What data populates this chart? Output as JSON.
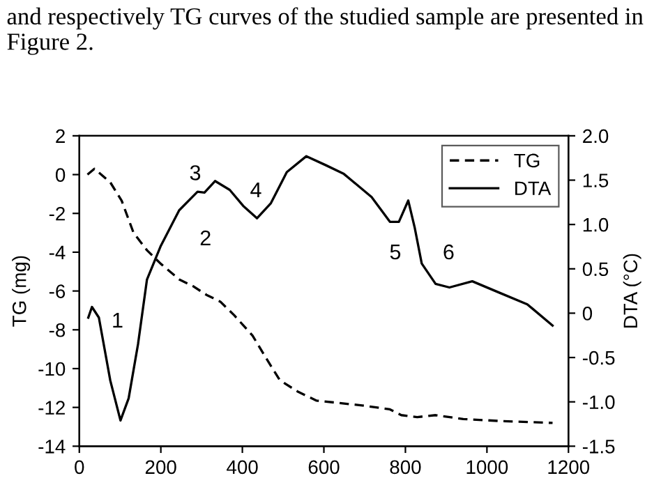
{
  "chart_data": {
    "type": "line",
    "ylabel": "TG (mg)",
    "y2label": "DTA (°C)",
    "annotations": [
      "and respectively TG curves of the studied sample are presented in Figure 2.",
      "1",
      "2",
      "3",
      "4",
      "5",
      "6"
    ],
    "series": [
      {
        "name": "TG",
        "color": "#000000",
        "line_style": "dashed",
        "x": [
          20,
          37,
          76,
          104,
          133,
          166,
          200,
          245,
          279,
          312,
          346,
          380,
          425,
          458,
          492,
          537,
          582,
          694,
          762,
          790,
          829,
          874,
          942,
          1031,
          1161
        ],
        "values": [
          0.0,
          0.3,
          -0.4,
          -1.35,
          -3.0,
          -3.9,
          -4.6,
          -5.4,
          -5.75,
          -6.2,
          -6.55,
          -7.25,
          -8.3,
          -9.45,
          -10.6,
          -11.2,
          -11.65,
          -11.9,
          -12.1,
          -12.4,
          -12.5,
          -12.4,
          -12.6,
          -12.7,
          -12.8
        ]
      },
      {
        "name": "DTA",
        "color": "#000000",
        "line_style": "solid",
        "axis": "y2",
        "x": [
          22,
          31,
          48,
          76,
          101,
          121,
          144,
          166,
          200,
          245,
          290,
          307,
          333,
          369,
          402,
          436,
          470,
          509,
          557,
          604,
          649,
          717,
          762,
          784,
          807,
          823,
          840,
          874,
          908,
          964,
          1031,
          1099,
          1161
        ],
        "values": [
          -0.05,
          0.07,
          -0.05,
          -0.76,
          -1.21,
          -0.96,
          -0.35,
          0.38,
          0.76,
          1.16,
          1.37,
          1.36,
          1.49,
          1.39,
          1.21,
          1.07,
          1.24,
          1.59,
          1.77,
          1.67,
          1.57,
          1.31,
          1.03,
          1.03,
          1.27,
          0.96,
          0.56,
          0.33,
          0.29,
          0.36,
          0.23,
          0.1,
          -0.14
        ]
      }
    ],
    "xlim": [
      0,
      1200
    ],
    "xticks": [
      0,
      200,
      400,
      600,
      800,
      1000,
      1200
    ],
    "ylim": [
      -14,
      2
    ],
    "yticks": [
      -14,
      -12,
      -10,
      -8,
      -6,
      -4,
      -2,
      0,
      2
    ],
    "y2lim": [
      -1.5,
      2.0
    ],
    "y2ticks": [
      {
        "value": -1.5,
        "label": "-1.5"
      },
      {
        "value": -1.0,
        "label": "-1.0"
      },
      {
        "value": -0.5,
        "label": "-0.5"
      },
      0,
      {
        "value": 0.5,
        "label": "0.5"
      },
      {
        "value": 1.0,
        "label": "1.0"
      },
      {
        "value": 1.5,
        "label": "1.5"
      },
      {
        "value": 2.0,
        "label": "2.0"
      }
    ],
    "legend": "top right",
    "grid": false,
    "marker": "none"
  }
}
